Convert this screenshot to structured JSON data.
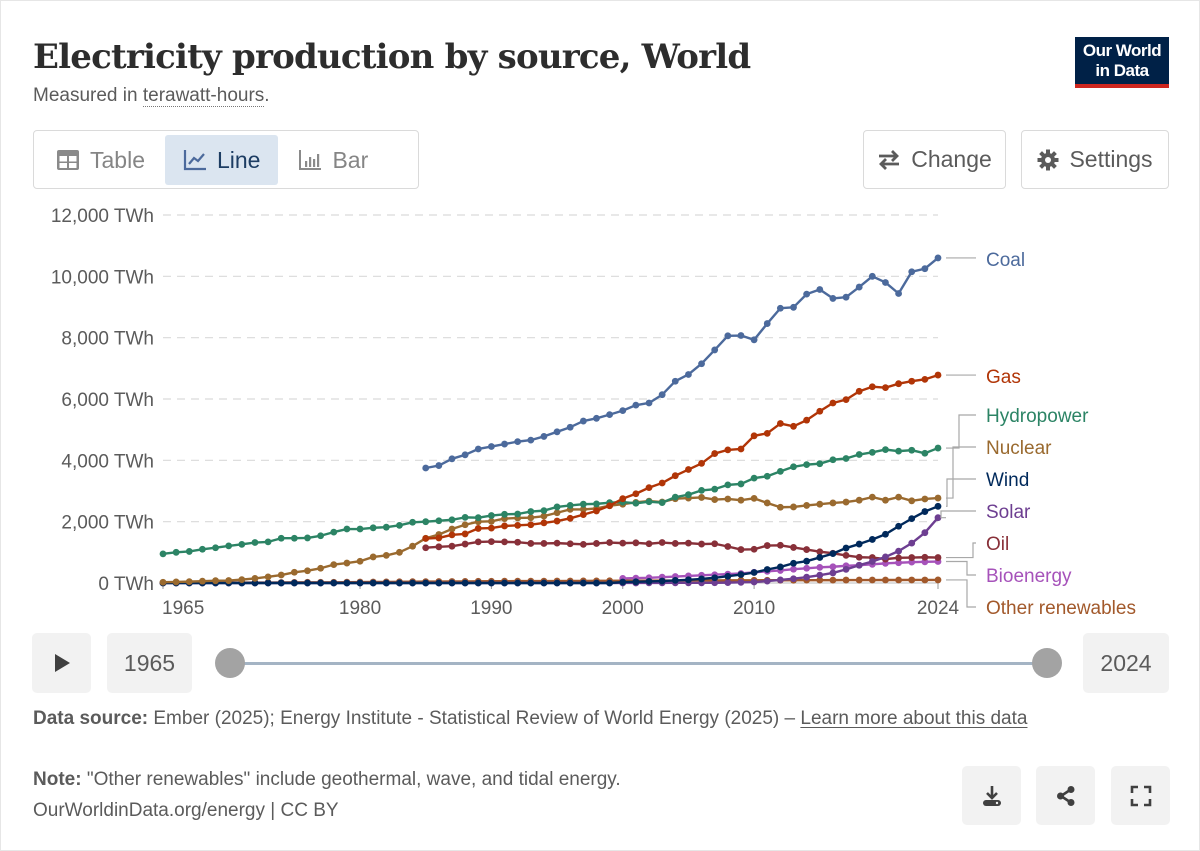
{
  "header": {
    "title": "Electricity production by source, World",
    "subtitle_prefix": "Measured in ",
    "subtitle_unit": "terawatt-hours",
    "subtitle_suffix": ".",
    "logo_line1": "Our World",
    "logo_line2": "in Data"
  },
  "tabs": [
    {
      "label": "Table",
      "icon": "table-icon",
      "active": false
    },
    {
      "label": "Line",
      "icon": "line-chart-icon",
      "active": true
    },
    {
      "label": "Bar",
      "icon": "bar-chart-icon",
      "active": false
    }
  ],
  "toolbar": {
    "change_label": "Change",
    "settings_label": "Settings"
  },
  "timeline": {
    "start_year": "1965",
    "end_year": "2024",
    "play_icon": "play-icon"
  },
  "footer": {
    "source_label": "Data source:",
    "source_text": " Ember (2025); Energy Institute - Statistical Review of World Energy (2025) – ",
    "source_link": "Learn more about this data",
    "note_label": "Note:",
    "note_text": " \"Other renewables\" include geothermal, wave, and tidal energy.",
    "credit": "OurWorldinData.org/energy | CC BY",
    "actions": [
      "download-icon",
      "share-icon",
      "fullscreen-icon"
    ]
  },
  "chart_data": {
    "type": "line",
    "title": "Electricity production by source, World",
    "ylabel": "TWh",
    "xlabel": "",
    "ylim": [
      0,
      12000
    ],
    "xlim": [
      1965,
      2024
    ],
    "yticks": [
      "0 TWh",
      "2,000 TWh",
      "4,000 TWh",
      "6,000 TWh",
      "8,000 TWh",
      "10,000 TWh",
      "12,000 TWh"
    ],
    "ytick_values": [
      0,
      2000,
      4000,
      6000,
      8000,
      10000,
      12000
    ],
    "xticks": [
      1965,
      1980,
      1990,
      2000,
      2010,
      2024
    ],
    "grid": "horizontal-dashed",
    "legend_placement": "right-end-labels",
    "series": [
      {
        "name": "Coal",
        "color": "#4c6a9c",
        "start": 1985,
        "values": [
          3750,
          3830,
          4050,
          4180,
          4370,
          4450,
          4530,
          4610,
          4660,
          4780,
          4930,
          5080,
          5280,
          5370,
          5490,
          5620,
          5800,
          5870,
          6140,
          6580,
          6800,
          7150,
          7600,
          8060,
          8070,
          7930,
          8460,
          8960,
          8990,
          9420,
          9570,
          9280,
          9320,
          9650,
          10000,
          9800,
          9440,
          10150,
          10250,
          10600
        ]
      },
      {
        "name": "Gas",
        "color": "#b13507",
        "start": 1985,
        "values": [
          1450,
          1470,
          1570,
          1600,
          1780,
          1790,
          1860,
          1880,
          1900,
          1960,
          2020,
          2110,
          2230,
          2350,
          2520,
          2750,
          2910,
          3110,
          3260,
          3500,
          3700,
          3900,
          4220,
          4340,
          4370,
          4800,
          4880,
          5200,
          5110,
          5310,
          5600,
          5870,
          5980,
          6250,
          6400,
          6370,
          6500,
          6580,
          6640,
          6780
        ]
      },
      {
        "name": "Hydropower",
        "color": "#2c8465",
        "start": 1965,
        "values": [
          950,
          1000,
          1030,
          1100,
          1150,
          1210,
          1260,
          1320,
          1340,
          1460,
          1460,
          1470,
          1540,
          1660,
          1760,
          1760,
          1800,
          1820,
          1880,
          1980,
          2000,
          2030,
          2060,
          2140,
          2130,
          2200,
          2240,
          2250,
          2330,
          2360,
          2480,
          2530,
          2570,
          2580,
          2620,
          2640,
          2600,
          2650,
          2620,
          2800,
          2880,
          3020,
          3060,
          3200,
          3230,
          3420,
          3480,
          3640,
          3790,
          3860,
          3890,
          4020,
          4060,
          4190,
          4260,
          4350,
          4300,
          4330,
          4230,
          4400
        ]
      },
      {
        "name": "Nuclear",
        "color": "#9a6a2f",
        "start": 1965,
        "values": [
          25,
          35,
          45,
          60,
          75,
          80,
          110,
          150,
          200,
          260,
          350,
          400,
          480,
          600,
          650,
          710,
          850,
          900,
          1000,
          1200,
          1460,
          1580,
          1760,
          1900,
          2000,
          2010,
          2100,
          2120,
          2130,
          2180,
          2290,
          2400,
          2400,
          2430,
          2520,
          2570,
          2630,
          2670,
          2640,
          2750,
          2770,
          2790,
          2720,
          2740,
          2700,
          2760,
          2610,
          2470,
          2480,
          2530,
          2570,
          2610,
          2640,
          2700,
          2800,
          2700,
          2800,
          2680,
          2740,
          2770
        ]
      },
      {
        "name": "Wind",
        "color": "#00295b",
        "start": 1965,
        "values": [
          0,
          0,
          0,
          0,
          0,
          0,
          0,
          0,
          0,
          0,
          0,
          0,
          0,
          0,
          0,
          0,
          0,
          0,
          0,
          0,
          0,
          0,
          0,
          0,
          0,
          0,
          0,
          0,
          0,
          0,
          0,
          0,
          0,
          0,
          0,
          31,
          38,
          52,
          63,
          85,
          104,
          133,
          171,
          221,
          276,
          342,
          440,
          523,
          645,
          712,
          833,
          959,
          1140,
          1270,
          1420,
          1590,
          1850,
          2100,
          2330,
          2500
        ]
      },
      {
        "name": "Solar",
        "color": "#6d3e91",
        "start": 1965,
        "values": [
          0,
          0,
          0,
          0,
          0,
          0,
          0,
          0,
          0,
          0,
          0,
          0,
          0,
          0,
          0,
          0,
          0,
          0,
          0,
          0,
          0,
          0,
          0,
          0,
          0,
          0,
          0,
          0,
          0,
          0,
          0,
          0,
          0,
          0,
          0,
          1,
          2,
          3,
          4,
          5,
          5,
          6,
          8,
          12,
          21,
          32,
          63,
          100,
          139,
          190,
          256,
          329,
          445,
          580,
          700,
          850,
          1040,
          1300,
          1640,
          2130
        ]
      },
      {
        "name": "Oil",
        "color": "#883039",
        "start": 1985,
        "values": [
          1150,
          1180,
          1200,
          1270,
          1340,
          1350,
          1340,
          1330,
          1290,
          1290,
          1300,
          1280,
          1260,
          1290,
          1320,
          1300,
          1310,
          1280,
          1320,
          1290,
          1300,
          1270,
          1280,
          1190,
          1090,
          1100,
          1220,
          1230,
          1160,
          1090,
          1020,
          970,
          900,
          840,
          830,
          780,
          820,
          830,
          840,
          830
        ]
      },
      {
        "name": "Bioenergy",
        "color": "#a652ba",
        "start": 2000,
        "values": [
          150,
          160,
          170,
          190,
          210,
          230,
          250,
          270,
          290,
          310,
          350,
          380,
          410,
          450,
          480,
          510,
          530,
          560,
          580,
          610,
          640,
          660,
          680,
          690,
          700
        ]
      },
      {
        "name": "Other renewables",
        "color": "#a2592b",
        "start": 1965,
        "values": [
          10,
          10,
          10,
          10,
          10,
          12,
          12,
          14,
          15,
          17,
          20,
          22,
          23,
          24,
          26,
          30,
          33,
          36,
          38,
          42,
          45,
          48,
          50,
          52,
          55,
          58,
          60,
          62,
          62,
          62,
          64,
          66,
          68,
          70,
          72,
          74,
          74,
          76,
          78,
          80,
          82,
          83,
          85,
          86,
          88,
          89,
          90,
          90,
          92,
          93,
          93,
          94,
          95,
          96,
          97,
          98,
          98,
          99,
          99,
          100
        ]
      }
    ]
  }
}
